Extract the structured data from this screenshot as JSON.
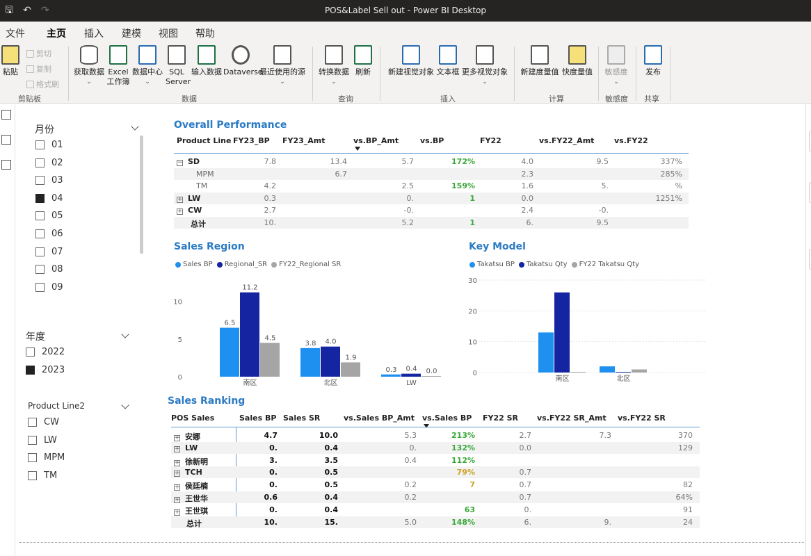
{
  "window": {
    "title": "POS&Label Sell out - Power BI Desktop"
  },
  "menu": {
    "tabs": [
      "文件",
      "主页",
      "插入",
      "建模",
      "视图",
      "帮助"
    ],
    "active": "主页"
  },
  "ribbon": {
    "paste": "粘贴",
    "cut": "剪切",
    "copy": "复制",
    "format_painter": "格式刷",
    "get_data": "获取数据",
    "excel": "Excel\n工作簿",
    "data_hub": "数据中心",
    "sql": "SQL\nServer",
    "enter_data": "输入数据",
    "dataverse": "Dataverse",
    "recent_sources": "最近使用的源",
    "transform": "转换数据",
    "refresh": "刷新",
    "new_visual": "新建视觉对象",
    "text_box": "文本框",
    "more_visuals": "更多视觉对象",
    "new_measure": "新建度量值",
    "quick_measure": "快度量值",
    "sensitivity": "敏感度",
    "publish": "发布",
    "groups": {
      "clipboard": "剪贴板",
      "data": "数据",
      "queries": "查询",
      "insert": "插入",
      "calculations": "计算",
      "sensitivity": "敏感度",
      "share": "共享"
    }
  },
  "slicers": {
    "month": {
      "title": "月份",
      "items": [
        {
          "label": "01",
          "checked": false
        },
        {
          "label": "02",
          "checked": false
        },
        {
          "label": "03",
          "checked": false
        },
        {
          "label": "04",
          "checked": true
        },
        {
          "label": "05",
          "checked": false
        },
        {
          "label": "06",
          "checked": false
        },
        {
          "label": "07",
          "checked": false
        },
        {
          "label": "08",
          "checked": false
        },
        {
          "label": "09",
          "checked": false
        }
      ]
    },
    "year": {
      "title": "年度",
      "items": [
        {
          "label": "2022",
          "checked": false
        },
        {
          "label": "2023",
          "checked": true
        }
      ]
    },
    "product_line": {
      "title": "Product Line2",
      "items": [
        {
          "label": "CW",
          "checked": false
        },
        {
          "label": "LW",
          "checked": false
        },
        {
          "label": "MPM",
          "checked": false
        },
        {
          "label": "TM",
          "checked": false
        }
      ]
    }
  },
  "overall": {
    "title": "Overall Performance",
    "headers": [
      "Product Line",
      "FY23_BP",
      "FY23_Amt",
      "vs.BP_Amt",
      "vs.BP",
      "FY22",
      "vs.FY22_Amt",
      "vs.FY22"
    ],
    "rows": [
      {
        "label": "SD",
        "cells": [
          "7.8",
          "13.4",
          "5.7",
          "172%",
          "4.0",
          "9.5",
          "337%"
        ]
      },
      {
        "label": "MPM",
        "cells": [
          "",
          "6.7",
          "",
          "",
          "2.3",
          "",
          "285%"
        ]
      },
      {
        "label": "TM",
        "cells": [
          "4.2",
          "",
          "2.5",
          "159%",
          "1.6",
          "5.",
          "%"
        ]
      },
      {
        "label": "LW",
        "cells": [
          "0.3",
          "",
          "0.",
          "1",
          "0.0",
          "",
          "1251%"
        ]
      },
      {
        "label": "CW",
        "cells": [
          "2.7",
          "",
          "-0.",
          "",
          "2.4",
          "-0.",
          ""
        ]
      },
      {
        "label": "总计",
        "cells": [
          "10.",
          "",
          "5.2",
          "1",
          "6.",
          "9.5",
          ""
        ]
      }
    ]
  },
  "sales_region": {
    "title": "Sales Region",
    "legend": [
      "Sales BP",
      "Regional_SR",
      "FY22_Regional SR"
    ]
  },
  "key_model": {
    "title": "Key Model",
    "legend": [
      "Takatsu BP",
      "Takatsu Qty",
      "FY22 Takatsu Qty"
    ]
  },
  "ranking": {
    "title": "Sales Ranking",
    "headers": [
      "POS Sales",
      "Sales BP",
      "Sales SR",
      "vs.Sales BP_Amt",
      "vs.Sales BP",
      "FY22 SR",
      "vs.FY22 SR_Amt",
      "vs.FY22 SR"
    ],
    "rows": [
      {
        "label": "安娜",
        "cells": [
          "4.7",
          "10.0",
          "5.3",
          "213%",
          "2.7",
          "7.3",
          "370"
        ]
      },
      {
        "label": "LW",
        "cells": [
          "0.",
          "0.4",
          "0.",
          "132%",
          "0.0",
          "",
          "129"
        ]
      },
      {
        "label": "徐新明",
        "cells": [
          "3.",
          "3.5",
          "0.4",
          "112%",
          "",
          "",
          ""
        ]
      },
      {
        "label": "TCH",
        "cells": [
          "0.",
          "0.5",
          "",
          "79%",
          "0.7",
          "",
          ""
        ]
      },
      {
        "label": "侯廷楠",
        "cells": [
          "0.",
          "0.5",
          "0.2",
          "7",
          "0.7",
          "",
          "82"
        ]
      },
      {
        "label": "王世华",
        "cells": [
          "0.6",
          "0.4",
          "0.2",
          "",
          "0.7",
          "",
          "64%"
        ]
      },
      {
        "label": "王世琪",
        "cells": [
          "0.",
          "0.4",
          "",
          "63",
          "0.",
          "",
          "91"
        ]
      },
      {
        "label": "总计",
        "cells": [
          "10.",
          "15.",
          "5.0",
          "148%",
          "6.",
          "9.",
          "24"
        ]
      }
    ]
  },
  "colors": {
    "title_blue": "#2a7ac4",
    "series_light": "#1e90ef",
    "series_dark": "#1524a0",
    "series_gray": "#a5a5a5",
    "accent_yellow": "#f2c811"
  },
  "chart_data": [
    {
      "type": "bar",
      "title": "Sales Region",
      "categories": [
        "南区",
        "北区",
        "LW"
      ],
      "series": [
        {
          "name": "Sales BP",
          "values": [
            6.5,
            3.8,
            0.3
          ]
        },
        {
          "name": "Regional_SR",
          "values": [
            11.2,
            4.0,
            0.4
          ]
        },
        {
          "name": "FY22_Regional SR",
          "values": [
            4.5,
            1.9,
            0.0
          ]
        }
      ],
      "ylim": [
        0,
        12
      ],
      "yticks": [
        0,
        5,
        10
      ],
      "legend": "top-left",
      "data_labels": true
    },
    {
      "type": "bar",
      "title": "Key Model",
      "categories": [
        "南区",
        "北区"
      ],
      "series": [
        {
          "name": "Takatsu BP",
          "values": [
            13,
            2
          ]
        },
        {
          "name": "Takatsu Qty",
          "values": [
            26,
            0
          ]
        },
        {
          "name": "FY22 Takatsu Qty",
          "values": [
            0,
            1
          ]
        }
      ],
      "ylim": [
        0,
        30
      ],
      "yticks": [
        0,
        10,
        20,
        30
      ],
      "legend": "top-left",
      "grid": true
    }
  ]
}
